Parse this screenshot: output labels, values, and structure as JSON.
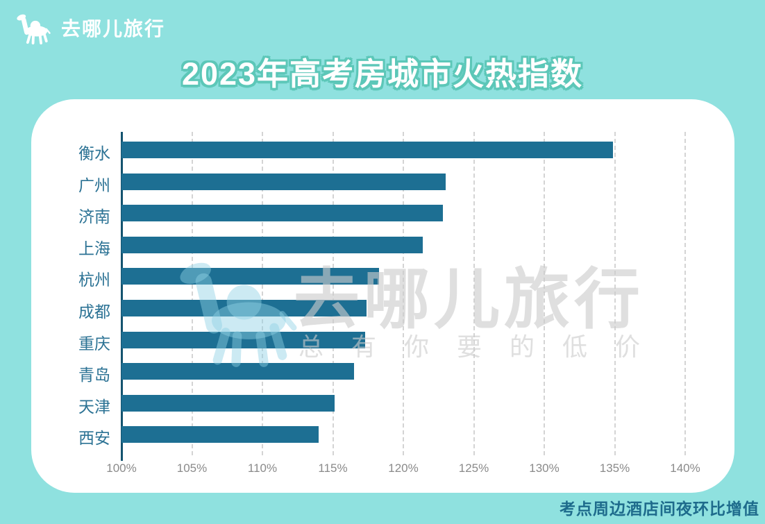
{
  "header": {
    "brand": "去哪儿旅行",
    "title": "2023年高考房城市火热指数"
  },
  "watermark": {
    "brand": "去哪儿旅行",
    "slogan": "总有你要的低价",
    "camel_icon": "camel-icon"
  },
  "footer": {
    "note": "考点周边酒店间夜环比增值"
  },
  "colors": {
    "background": "#8fe1df",
    "card": "#ffffff",
    "bar": "#1d6f93",
    "axis_line": "#14536f",
    "gridline": "#d4d4d4",
    "city_label": "#2b7294",
    "tick_label": "#8a8a8a",
    "title_fill": "#ffffff",
    "title_outline": "#5cc7b8",
    "footnote": "#1e6b8c"
  },
  "chart_data": {
    "type": "bar",
    "orientation": "horizontal",
    "title": "2023年高考房城市火热指数",
    "categories": [
      "衡水",
      "广州",
      "济南",
      "上海",
      "杭州",
      "成都",
      "重庆",
      "青岛",
      "天津",
      "西安"
    ],
    "values": [
      134.9,
      123.0,
      122.8,
      121.4,
      118.3,
      117.4,
      117.3,
      116.5,
      115.1,
      114.0
    ],
    "unit": "%",
    "xlim": [
      100,
      140
    ],
    "x_ticks": [
      "100%",
      "105%",
      "110%",
      "115%",
      "120%",
      "125%",
      "130%",
      "135%",
      "140%"
    ],
    "grid": "dashed-vertical",
    "legend": "none",
    "value_note": "考点周边酒店间夜环比增值"
  }
}
